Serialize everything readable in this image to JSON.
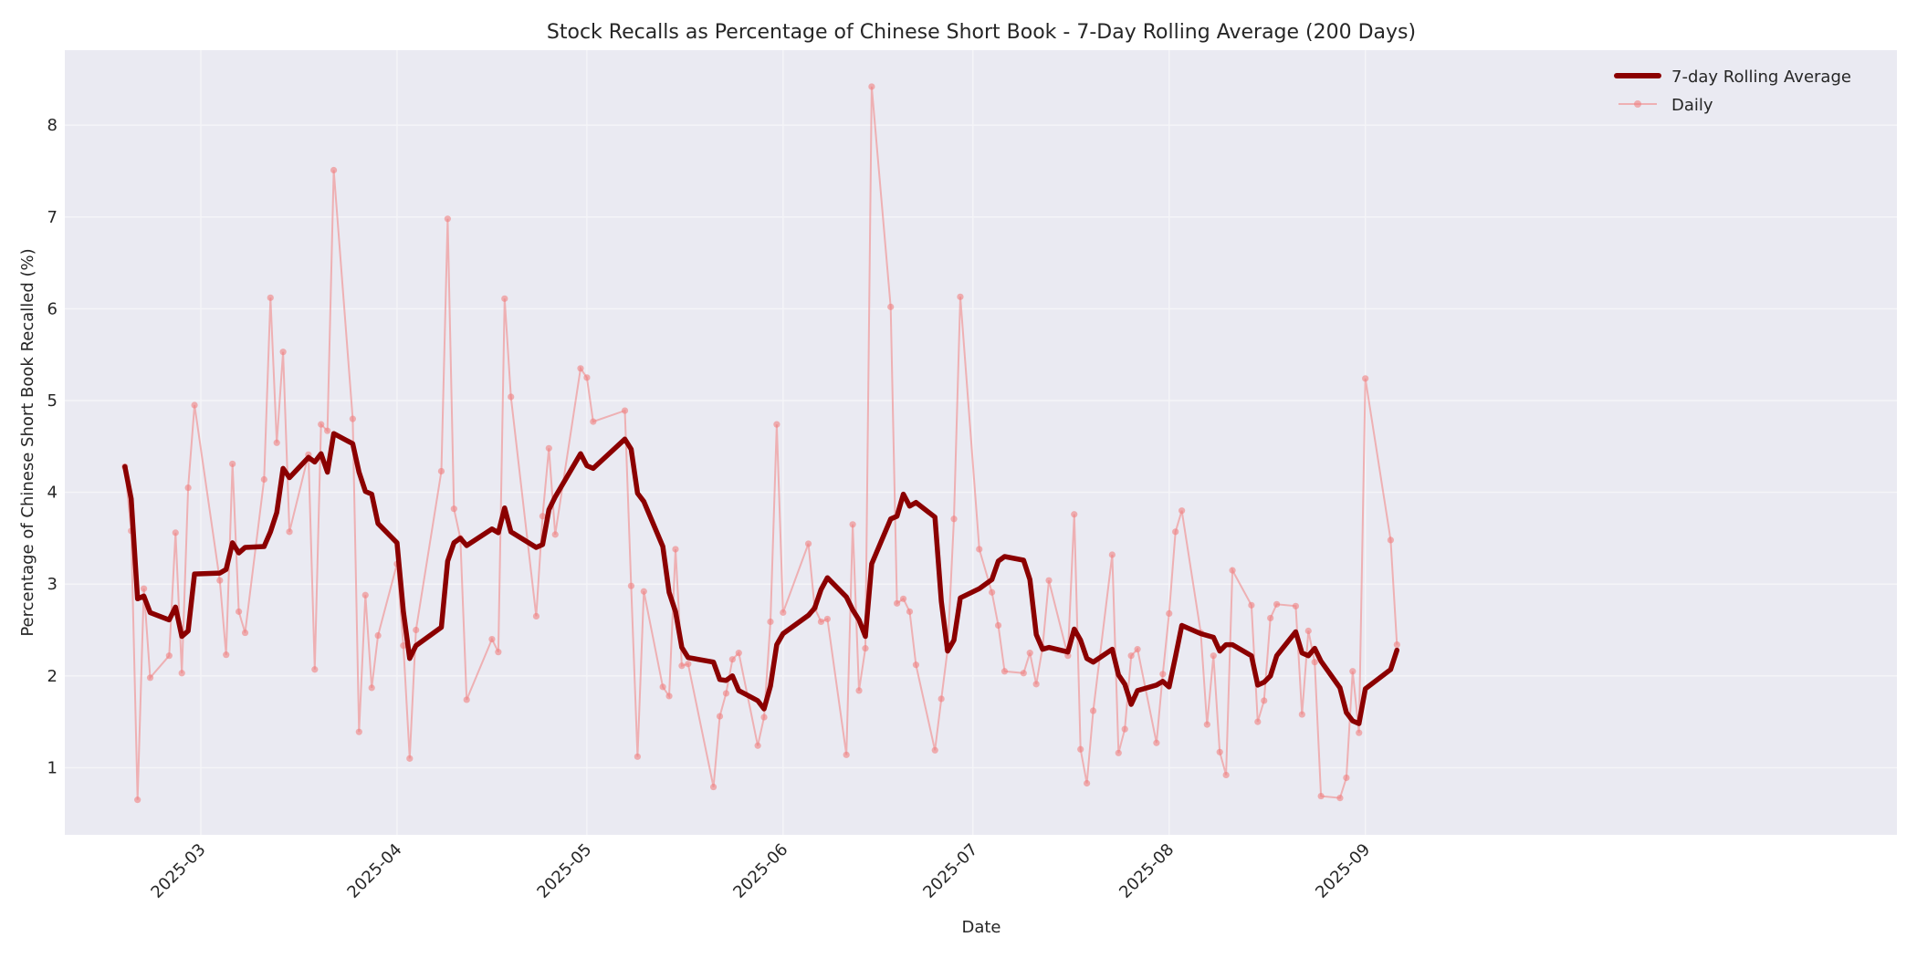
{
  "chart_data": {
    "type": "line",
    "title": "Stock Recalls as Percentage of Chinese Short Book - 7-Day Rolling Average (200 Days)",
    "xlabel": "Date",
    "ylabel": "Percentage of Chinese Short Book Recalled (%)",
    "x_ticks": [
      "2025-03",
      "2025-04",
      "2025-05",
      "2025-06",
      "2025-07",
      "2025-08",
      "2025-09"
    ],
    "y_ticks": [
      1,
      2,
      3,
      4,
      5,
      6,
      7,
      8
    ],
    "ylim": [
      0.25,
      8.8
    ],
    "xlim": [
      "2025-02-11",
      "2025-09-07"
    ],
    "grid": true,
    "legend_position": "upper right",
    "legend": [
      "7-day Rolling Average",
      "Daily"
    ],
    "colors": {
      "rolling": "#8b0000",
      "daily": "#f08080",
      "plot_bg": "#eaeaf2",
      "grid": "#f5f5f8"
    },
    "series": [
      {
        "name": "Daily",
        "style": "thin line with circle markers",
        "points": [
          [
            "2025-02-17",
            4.28
          ],
          [
            "2025-02-18",
            3.58
          ],
          [
            "2025-02-19",
            0.65
          ],
          [
            "2025-02-20",
            2.95
          ],
          [
            "2025-02-21",
            1.98
          ],
          [
            "2025-02-24",
            2.22
          ],
          [
            "2025-02-25",
            3.56
          ],
          [
            "2025-02-26",
            2.03
          ],
          [
            "2025-02-27",
            4.05
          ],
          [
            "2025-02-28",
            4.95
          ],
          [
            "2025-03-04",
            3.04
          ],
          [
            "2025-03-05",
            2.23
          ],
          [
            "2025-03-06",
            4.31
          ],
          [
            "2025-03-07",
            2.7
          ],
          [
            "2025-03-08",
            2.47
          ],
          [
            "2025-03-11",
            4.14
          ],
          [
            "2025-03-12",
            6.12
          ],
          [
            "2025-03-13",
            4.54
          ],
          [
            "2025-03-14",
            5.53
          ],
          [
            "2025-03-15",
            3.57
          ],
          [
            "2025-03-18",
            4.41
          ],
          [
            "2025-03-19",
            2.07
          ],
          [
            "2025-03-20",
            4.74
          ],
          [
            "2025-03-21",
            4.67
          ],
          [
            "2025-03-22",
            7.51
          ],
          [
            "2025-03-25",
            4.8
          ],
          [
            "2025-03-26",
            1.39
          ],
          [
            "2025-03-27",
            2.88
          ],
          [
            "2025-03-28",
            1.87
          ],
          [
            "2025-03-29",
            2.44
          ],
          [
            "2025-04-01",
            3.22
          ],
          [
            "2025-04-02",
            2.33
          ],
          [
            "2025-04-03",
            1.1
          ],
          [
            "2025-04-04",
            2.5
          ],
          [
            "2025-04-08",
            4.23
          ],
          [
            "2025-04-09",
            6.98
          ],
          [
            "2025-04-10",
            3.82
          ],
          [
            "2025-04-11",
            3.5
          ],
          [
            "2025-04-12",
            1.74
          ],
          [
            "2025-04-16",
            2.4
          ],
          [
            "2025-04-17",
            2.26
          ],
          [
            "2025-04-18",
            6.11
          ],
          [
            "2025-04-19",
            5.04
          ],
          [
            "2025-04-23",
            2.65
          ],
          [
            "2025-04-24",
            3.74
          ],
          [
            "2025-04-25",
            4.48
          ],
          [
            "2025-04-26",
            3.54
          ],
          [
            "2025-04-30",
            5.35
          ],
          [
            "2025-05-01",
            5.25
          ],
          [
            "2025-05-02",
            4.77
          ],
          [
            "2025-05-07",
            4.89
          ],
          [
            "2025-05-08",
            2.98
          ],
          [
            "2025-05-09",
            1.12
          ],
          [
            "2025-05-10",
            2.92
          ],
          [
            "2025-05-13",
            1.88
          ],
          [
            "2025-05-14",
            1.78
          ],
          [
            "2025-05-15",
            3.38
          ],
          [
            "2025-05-16",
            2.11
          ],
          [
            "2025-05-17",
            2.13
          ],
          [
            "2025-05-21",
            0.79
          ],
          [
            "2025-05-22",
            1.56
          ],
          [
            "2025-05-23",
            1.81
          ],
          [
            "2025-05-24",
            2.18
          ],
          [
            "2025-05-25",
            2.25
          ],
          [
            "2025-05-28",
            1.24
          ],
          [
            "2025-05-29",
            1.55
          ],
          [
            "2025-05-30",
            2.59
          ],
          [
            "2025-05-31",
            4.74
          ],
          [
            "2025-06-01",
            2.69
          ],
          [
            "2025-06-05",
            3.44
          ],
          [
            "2025-06-06",
            2.74
          ],
          [
            "2025-06-07",
            2.59
          ],
          [
            "2025-06-08",
            2.62
          ],
          [
            "2025-06-11",
            1.14
          ],
          [
            "2025-06-12",
            3.65
          ],
          [
            "2025-06-13",
            1.84
          ],
          [
            "2025-06-14",
            2.3
          ],
          [
            "2025-06-15",
            8.42
          ],
          [
            "2025-06-18",
            6.02
          ],
          [
            "2025-06-19",
            2.79
          ],
          [
            "2025-06-20",
            2.84
          ],
          [
            "2025-06-21",
            2.7
          ],
          [
            "2025-06-22",
            2.12
          ],
          [
            "2025-06-25",
            1.19
          ],
          [
            "2025-06-26",
            1.75
          ],
          [
            "2025-06-27",
            2.29
          ],
          [
            "2025-06-28",
            3.71
          ],
          [
            "2025-06-29",
            6.13
          ],
          [
            "2025-07-02",
            3.38
          ],
          [
            "2025-07-04",
            2.91
          ],
          [
            "2025-07-05",
            2.55
          ],
          [
            "2025-07-06",
            2.05
          ],
          [
            "2025-07-09",
            2.03
          ],
          [
            "2025-07-10",
            2.25
          ],
          [
            "2025-07-11",
            1.91
          ],
          [
            "2025-07-12",
            2.31
          ],
          [
            "2025-07-13",
            3.04
          ],
          [
            "2025-07-16",
            2.22
          ],
          [
            "2025-07-17",
            3.76
          ],
          [
            "2025-07-18",
            1.2
          ],
          [
            "2025-07-19",
            0.83
          ],
          [
            "2025-07-20",
            1.62
          ],
          [
            "2025-07-23",
            3.32
          ],
          [
            "2025-07-24",
            1.16
          ],
          [
            "2025-07-25",
            1.42
          ],
          [
            "2025-07-26",
            2.22
          ],
          [
            "2025-07-27",
            2.29
          ],
          [
            "2025-07-30",
            1.27
          ],
          [
            "2025-07-31",
            2.02
          ],
          [
            "2025-08-01",
            2.68
          ],
          [
            "2025-08-02",
            3.57
          ],
          [
            "2025-08-03",
            3.8
          ],
          [
            "2025-08-06",
            2.47
          ],
          [
            "2025-08-07",
            1.47
          ],
          [
            "2025-08-08",
            2.22
          ],
          [
            "2025-08-09",
            1.17
          ],
          [
            "2025-08-10",
            0.92
          ],
          [
            "2025-08-11",
            3.15
          ],
          [
            "2025-08-14",
            2.77
          ],
          [
            "2025-08-15",
            1.5
          ],
          [
            "2025-08-16",
            1.73
          ],
          [
            "2025-08-17",
            2.63
          ],
          [
            "2025-08-18",
            2.78
          ],
          [
            "2025-08-21",
            2.76
          ],
          [
            "2025-08-22",
            1.58
          ],
          [
            "2025-08-23",
            2.49
          ],
          [
            "2025-08-24",
            2.15
          ],
          [
            "2025-08-25",
            0.69
          ],
          [
            "2025-08-28",
            0.67
          ],
          [
            "2025-08-29",
            0.89
          ],
          [
            "2025-08-30",
            2.05
          ],
          [
            "2025-08-31",
            1.38
          ],
          [
            "2025-09-01",
            5.24
          ],
          [
            "2025-09-05",
            3.48
          ],
          [
            "2025-09-06",
            2.34
          ]
        ]
      },
      {
        "name": "7-day Rolling Average",
        "style": "thick solid line",
        "points": [
          [
            "2025-02-17",
            4.28
          ],
          [
            "2025-02-18",
            3.93
          ],
          [
            "2025-02-19",
            2.84
          ],
          [
            "2025-02-20",
            2.87
          ],
          [
            "2025-02-21",
            2.69
          ],
          [
            "2025-02-24",
            2.61
          ],
          [
            "2025-02-25",
            2.75
          ],
          [
            "2025-02-26",
            2.43
          ],
          [
            "2025-02-27",
            2.49
          ],
          [
            "2025-02-28",
            3.11
          ],
          [
            "2025-03-04",
            3.12
          ],
          [
            "2025-03-05",
            3.16
          ],
          [
            "2025-03-06",
            3.45
          ],
          [
            "2025-03-07",
            3.34
          ],
          [
            "2025-03-08",
            3.4
          ],
          [
            "2025-03-11",
            3.41
          ],
          [
            "2025-03-12",
            3.57
          ],
          [
            "2025-03-13",
            3.78
          ],
          [
            "2025-03-14",
            4.26
          ],
          [
            "2025-03-15",
            4.16
          ],
          [
            "2025-03-18",
            4.38
          ],
          [
            "2025-03-19",
            4.33
          ],
          [
            "2025-03-20",
            4.42
          ],
          [
            "2025-03-21",
            4.22
          ],
          [
            "2025-03-22",
            4.64
          ],
          [
            "2025-03-25",
            4.53
          ],
          [
            "2025-03-26",
            4.22
          ],
          [
            "2025-03-27",
            4.01
          ],
          [
            "2025-03-28",
            3.98
          ],
          [
            "2025-03-29",
            3.66
          ],
          [
            "2025-04-01",
            3.45
          ],
          [
            "2025-04-02",
            2.7
          ],
          [
            "2025-04-03",
            2.19
          ],
          [
            "2025-04-04",
            2.33
          ],
          [
            "2025-04-08",
            2.53
          ],
          [
            "2025-04-09",
            3.25
          ],
          [
            "2025-04-10",
            3.45
          ],
          [
            "2025-04-11",
            3.5
          ],
          [
            "2025-04-12",
            3.42
          ],
          [
            "2025-04-16",
            3.6
          ],
          [
            "2025-04-17",
            3.56
          ],
          [
            "2025-04-18",
            3.83
          ],
          [
            "2025-04-19",
            3.57
          ],
          [
            "2025-04-23",
            3.4
          ],
          [
            "2025-04-24",
            3.43
          ],
          [
            "2025-04-25",
            3.81
          ],
          [
            "2025-04-26",
            3.95
          ],
          [
            "2025-04-30",
            4.42
          ],
          [
            "2025-05-01",
            4.29
          ],
          [
            "2025-05-02",
            4.26
          ],
          [
            "2025-05-07",
            4.58
          ],
          [
            "2025-05-08",
            4.47
          ],
          [
            "2025-05-09",
            3.99
          ],
          [
            "2025-05-10",
            3.9
          ],
          [
            "2025-05-13",
            3.41
          ],
          [
            "2025-05-14",
            2.91
          ],
          [
            "2025-05-15",
            2.7
          ],
          [
            "2025-05-16",
            2.31
          ],
          [
            "2025-05-17",
            2.2
          ],
          [
            "2025-05-21",
            2.15
          ],
          [
            "2025-05-22",
            1.96
          ],
          [
            "2025-05-23",
            1.95
          ],
          [
            "2025-05-24",
            2.0
          ],
          [
            "2025-05-25",
            1.84
          ],
          [
            "2025-05-28",
            1.73
          ],
          [
            "2025-05-29",
            1.64
          ],
          [
            "2025-05-30",
            1.89
          ],
          [
            "2025-05-31",
            2.34
          ],
          [
            "2025-06-01",
            2.46
          ],
          [
            "2025-06-05",
            2.66
          ],
          [
            "2025-06-06",
            2.74
          ],
          [
            "2025-06-07",
            2.94
          ],
          [
            "2025-06-08",
            3.07
          ],
          [
            "2025-06-11",
            2.86
          ],
          [
            "2025-06-12",
            2.72
          ],
          [
            "2025-06-13",
            2.61
          ],
          [
            "2025-06-14",
            2.43
          ],
          [
            "2025-06-15",
            3.22
          ],
          [
            "2025-06-18",
            3.71
          ],
          [
            "2025-06-19",
            3.74
          ],
          [
            "2025-06-20",
            3.98
          ],
          [
            "2025-06-21",
            3.85
          ],
          [
            "2025-06-22",
            3.89
          ],
          [
            "2025-06-25",
            3.73
          ],
          [
            "2025-06-26",
            2.81
          ],
          [
            "2025-06-27",
            2.27
          ],
          [
            "2025-06-28",
            2.39
          ],
          [
            "2025-06-29",
            2.85
          ],
          [
            "2025-07-02",
            2.95
          ],
          [
            "2025-07-04",
            3.05
          ],
          [
            "2025-07-05",
            3.25
          ],
          [
            "2025-07-06",
            3.3
          ],
          [
            "2025-07-09",
            3.26
          ],
          [
            "2025-07-10",
            3.05
          ],
          [
            "2025-07-11",
            2.45
          ],
          [
            "2025-07-12",
            2.29
          ],
          [
            "2025-07-13",
            2.31
          ],
          [
            "2025-07-16",
            2.26
          ],
          [
            "2025-07-17",
            2.51
          ],
          [
            "2025-07-18",
            2.39
          ],
          [
            "2025-07-19",
            2.19
          ],
          [
            "2025-07-20",
            2.15
          ],
          [
            "2025-07-23",
            2.29
          ],
          [
            "2025-07-24",
            2.01
          ],
          [
            "2025-07-25",
            1.91
          ],
          [
            "2025-07-26",
            1.69
          ],
          [
            "2025-07-27",
            1.84
          ],
          [
            "2025-07-30",
            1.9
          ],
          [
            "2025-07-31",
            1.94
          ],
          [
            "2025-08-01",
            1.88
          ],
          [
            "2025-08-02",
            2.21
          ],
          [
            "2025-08-03",
            2.55
          ],
          [
            "2025-08-06",
            2.46
          ],
          [
            "2025-08-07",
            2.44
          ],
          [
            "2025-08-08",
            2.42
          ],
          [
            "2025-08-09",
            2.27
          ],
          [
            "2025-08-10",
            2.34
          ],
          [
            "2025-08-11",
            2.34
          ],
          [
            "2025-08-14",
            2.22
          ],
          [
            "2025-08-15",
            1.9
          ],
          [
            "2025-08-16",
            1.93
          ],
          [
            "2025-08-17",
            2.0
          ],
          [
            "2025-08-18",
            2.22
          ],
          [
            "2025-08-21",
            2.48
          ],
          [
            "2025-08-22",
            2.25
          ],
          [
            "2025-08-23",
            2.22
          ],
          [
            "2025-08-24",
            2.3
          ],
          [
            "2025-08-25",
            2.16
          ],
          [
            "2025-08-28",
            1.87
          ],
          [
            "2025-08-29",
            1.6
          ],
          [
            "2025-08-30",
            1.51
          ],
          [
            "2025-08-31",
            1.48
          ],
          [
            "2025-09-01",
            1.86
          ],
          [
            "2025-09-05",
            2.07
          ],
          [
            "2025-09-06",
            2.28
          ]
        ]
      }
    ]
  }
}
